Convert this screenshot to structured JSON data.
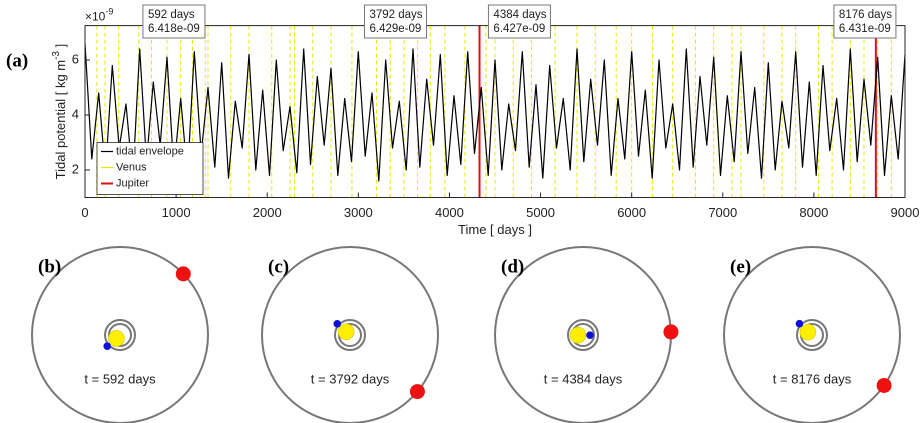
{
  "chart_data": {
    "type": "line",
    "panel_label": "(a)",
    "xlabel": "Time [ days ]",
    "ylabel": "Tidal potential [ kg m",
    "ylabel_sup": "-3",
    "ylabel_end": " ]",
    "y_multiplier": "×10",
    "y_multiplier_exp": "-9",
    "xlim": [
      0,
      9000
    ],
    "ylim": [
      1,
      7.25
    ],
    "xticks": [
      0,
      1000,
      2000,
      3000,
      4000,
      5000,
      6000,
      7000,
      8000,
      9000
    ],
    "yticks": [
      2,
      4,
      6
    ],
    "legend": "lower left",
    "series": [
      {
        "name": "tidal envelope",
        "color": "#000000",
        "x": [
          0,
          75,
          150,
          225,
          300,
          375,
          450,
          525,
          600,
          675,
          750,
          825,
          900,
          975,
          1050,
          1125,
          1200,
          1275,
          1350,
          1425,
          1500,
          1575,
          1650,
          1725,
          1800,
          1875,
          1950,
          2025,
          2100,
          2175,
          2250,
          2325,
          2400,
          2475,
          2550,
          2625,
          2700,
          2775,
          2850,
          2925,
          3000,
          3075,
          3150,
          3225,
          3300,
          3375,
          3450,
          3525,
          3600,
          3675,
          3750,
          3825,
          3900,
          3975,
          4050,
          4125,
          4200,
          4275,
          4350,
          4425,
          4500,
          4575,
          4650,
          4725,
          4800,
          4875,
          4950,
          5025,
          5100,
          5175,
          5250,
          5325,
          5400,
          5475,
          5550,
          5625,
          5700,
          5775,
          5850,
          5925,
          6000,
          6075,
          6150,
          6225,
          6300,
          6375,
          6450,
          6525,
          6600,
          6675,
          6750,
          6825,
          6900,
          6975,
          7050,
          7125,
          7200,
          7275,
          7350,
          7425,
          7500,
          7575,
          7650,
          7725,
          7800,
          7875,
          7950,
          8025,
          8100,
          8175,
          8250,
          8325,
          8400,
          8475,
          8550,
          8625,
          8700,
          8775,
          8850,
          8925,
          9000
        ],
        "values": [
          6.6,
          2.4,
          4.8,
          1.9,
          5.8,
          2.8,
          4.4,
          1.7,
          6.4,
          2.3,
          5.2,
          2.9,
          6.1,
          2.0,
          4.6,
          1.8,
          6.3,
          2.6,
          5.0,
          2.1,
          5.9,
          1.7,
          4.5,
          2.8,
          6.2,
          2.0,
          4.9,
          1.8,
          6.0,
          2.7,
          4.3,
          1.9,
          6.4,
          2.2,
          5.4,
          2.9,
          5.7,
          1.8,
          4.6,
          2.3,
          6.3,
          2.5,
          4.8,
          1.6,
          6.0,
          2.8,
          4.5,
          2.0,
          6.4,
          2.1,
          5.3,
          2.9,
          6.2,
          1.8,
          4.7,
          2.2,
          6.3,
          2.6,
          5.0,
          1.8,
          6.0,
          2.0,
          4.4,
          2.7,
          6.3,
          2.1,
          5.1,
          1.7,
          5.8,
          2.8,
          4.6,
          2.0,
          6.4,
          2.3,
          5.3,
          2.9,
          6.0,
          1.8,
          4.6,
          2.4,
          6.3,
          2.5,
          4.9,
          1.7,
          6.0,
          2.8,
          4.4,
          2.0,
          6.4,
          2.1,
          5.4,
          2.9,
          6.1,
          1.8,
          4.7,
          2.3,
          6.3,
          2.6,
          5.0,
          1.7,
          5.9,
          2.0,
          4.5,
          2.8,
          6.3,
          2.1,
          5.2,
          1.8,
          5.8,
          2.7,
          4.6,
          2.0,
          6.4,
          2.3,
          5.3,
          2.9,
          6.1,
          1.8,
          4.7,
          2.4,
          6.2
        ]
      },
      {
        "name": "Venus",
        "color": "#e8e800",
        "x": [
          130,
          220,
          370,
          590,
          730,
          900,
          1050,
          1180,
          1320,
          1350,
          1600,
          1800,
          2050,
          2250,
          2300,
          2500,
          2700,
          2930,
          3200,
          3350,
          3500,
          3650,
          3790,
          3950,
          4170,
          4400,
          4500,
          4700,
          4900,
          5160,
          5400,
          5600,
          5830,
          6000,
          6230,
          6450,
          6700,
          6900,
          7100,
          7200,
          7450,
          7650,
          7800,
          8050,
          8200,
          8400,
          8550,
          8700,
          8850
        ]
      },
      {
        "name": "Jupiter",
        "color": "#dd1111",
        "x": [
          4330,
          8680
        ]
      }
    ],
    "annotations": [
      {
        "x": 592,
        "y": 6.418,
        "label": "592 days",
        "value_label": "6.418e-09"
      },
      {
        "x": 3792,
        "y": 6.429,
        "label": "3792 days",
        "value_label": "6.429e-09"
      },
      {
        "x": 4384,
        "y": 6.427,
        "label": "4384 days",
        "value_label": "6.427e-09"
      },
      {
        "x": 8176,
        "y": 6.431,
        "label": "8176 days",
        "value_label": "6.431e-09"
      }
    ]
  },
  "orbits": [
    {
      "label": "(b)",
      "caption": "t = 592 days",
      "jupiter_angle": 44,
      "venus_angle": 220
    },
    {
      "label": "(c)",
      "caption": "t = 3792 days",
      "jupiter_angle": 320,
      "venus_angle": 138
    },
    {
      "label": "(d)",
      "caption": "t = 4384 days",
      "jupiter_angle": 2,
      "venus_angle": 0
    },
    {
      "label": "(e)",
      "caption": "t = 8176 days",
      "jupiter_angle": 325,
      "venus_angle": 135
    }
  ]
}
